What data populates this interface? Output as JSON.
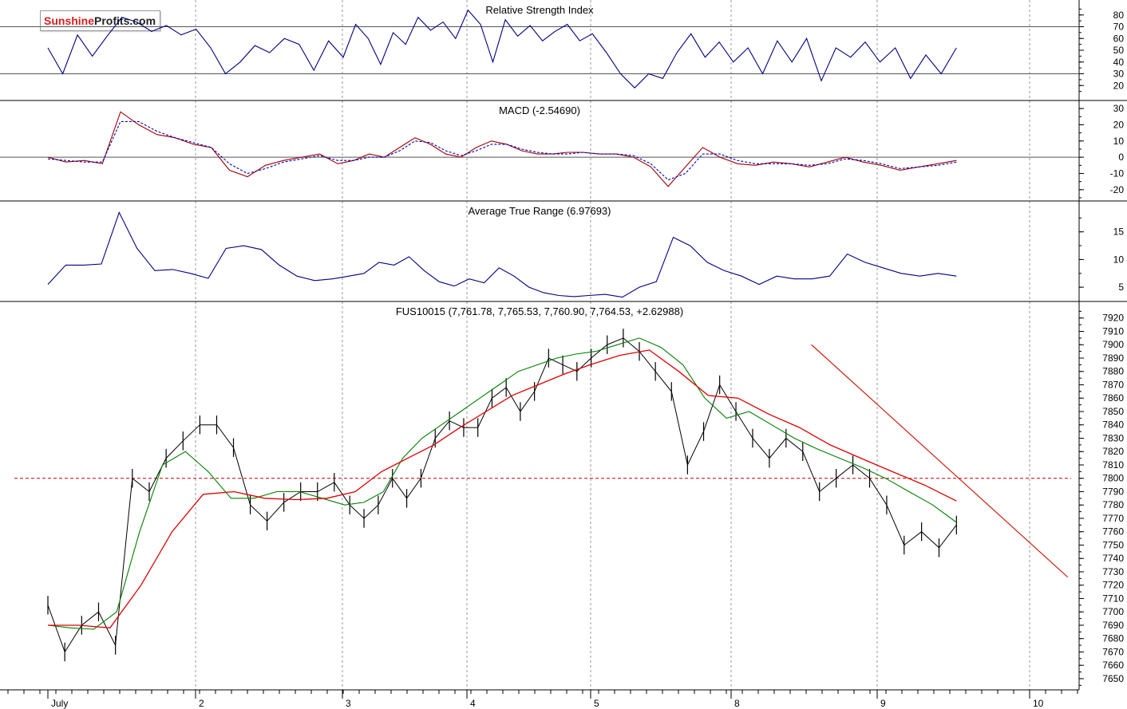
{
  "logo": {
    "brand_red": "Sunshine",
    "brand_black": "Profits.com"
  },
  "colors": {
    "price": "#000000",
    "ma_fast": "#008000",
    "ma_slow": "#e00000",
    "trend": "#d02010",
    "support": "#c00000",
    "indicator": "#000080",
    "grid": "#9a9a9a"
  },
  "x_axis": {
    "labels": [
      "July",
      "2",
      "3",
      "4",
      "5",
      "8",
      "9",
      "10"
    ],
    "session_index": [
      0,
      1,
      2,
      3,
      4,
      5,
      6,
      7
    ]
  },
  "chart_data": [
    {
      "id": "rsi",
      "type": "line",
      "title": "Relative Strength Index",
      "ylim": [
        10,
        90
      ],
      "ticks": [
        20,
        30,
        40,
        50,
        60,
        70,
        80
      ],
      "reference_lines": [
        30,
        70
      ],
      "x_session_range": [
        0,
        6.52
      ],
      "series": [
        {
          "values": [
            52,
            30,
            63,
            45,
            62,
            78,
            74,
            66,
            71,
            63,
            68,
            52,
            30,
            40,
            54,
            48,
            60,
            55,
            33,
            58,
            44,
            72,
            60,
            38,
            65,
            55,
            78,
            67,
            74,
            60,
            84,
            72,
            40,
            76,
            62,
            71,
            58,
            66,
            72,
            58,
            64,
            48,
            30,
            18,
            30,
            26,
            48,
            64,
            44,
            57,
            40,
            52,
            30,
            58,
            40,
            60,
            24,
            52,
            44,
            57,
            40,
            52,
            26,
            46,
            30,
            52
          ]
        }
      ]
    },
    {
      "id": "macd",
      "type": "line",
      "title": "MACD (-2.54690)",
      "ylim": [
        -25,
        33
      ],
      "ticks": [
        -20,
        -10,
        0,
        10,
        20,
        30
      ],
      "reference_lines": [
        0
      ],
      "x_session_range": [
        0,
        6.52
      ],
      "series": [
        {
          "values": [
            0,
            -3,
            -2,
            -4,
            28,
            20,
            14,
            12,
            8,
            6,
            -8,
            -12,
            -5,
            -2,
            0,
            2,
            -4,
            -2,
            2,
            0,
            6,
            12,
            8,
            2,
            0,
            6,
            10,
            8,
            4,
            2,
            2,
            3,
            3,
            2,
            2,
            0,
            -6,
            -18,
            -6,
            6,
            0,
            -4,
            -5,
            -3,
            -4,
            -6,
            -3,
            0,
            -3,
            -5,
            -8,
            -6,
            -4,
            -2
          ]
        },
        {
          "values": [
            -1,
            -2,
            -3,
            -3,
            22,
            22,
            16,
            12,
            9,
            6,
            -4,
            -10,
            -7,
            -3,
            -1,
            1,
            -2,
            -2,
            0,
            0,
            4,
            10,
            9,
            4,
            1,
            4,
            8,
            8,
            5,
            3,
            2,
            2,
            3,
            2,
            2,
            1,
            -4,
            -14,
            -10,
            2,
            2,
            -2,
            -4,
            -4,
            -4,
            -5,
            -4,
            -1,
            -2,
            -4,
            -7,
            -6,
            -5,
            -3
          ]
        }
      ]
    },
    {
      "id": "atr",
      "type": "line",
      "title": "Average True Range (6.97693)",
      "ylim": [
        3,
        20
      ],
      "ticks": [
        5,
        10,
        15
      ],
      "x_session_range": [
        0,
        6.52
      ],
      "series": [
        {
          "values": [
            5.5,
            9,
            9,
            9.2,
            18.5,
            12,
            8,
            8.2,
            7.5,
            6.6,
            12,
            12.5,
            11.8,
            9,
            7,
            6.2,
            6.5,
            7,
            7.5,
            9.5,
            9,
            10.5,
            8,
            6,
            5.2,
            6.5,
            5.8,
            8.5,
            7,
            5,
            4,
            3.5,
            3.3,
            3.5,
            3.7,
            3.2,
            5,
            6,
            14,
            12.5,
            9.5,
            8,
            7,
            5.5,
            7,
            6.5,
            6.5,
            7,
            11,
            9.5,
            8.5,
            7.5,
            7,
            7.5,
            7
          ]
        }
      ]
    },
    {
      "id": "price",
      "type": "line",
      "title": "FUS10015 (7,761.78, 7,765.53, 7,760.90, 7,764.53, +2.62988)",
      "ylim": [
        7644,
        7930
      ],
      "ticks": [
        7650,
        7660,
        7670,
        7680,
        7690,
        7700,
        7710,
        7720,
        7730,
        7740,
        7750,
        7760,
        7770,
        7780,
        7790,
        7800,
        7810,
        7820,
        7830,
        7840,
        7850,
        7860,
        7870,
        7880,
        7890,
        7900,
        7910,
        7920
      ],
      "support_level": 7800,
      "trendline": [
        {
          "session": 5.55,
          "value": 7900
        },
        {
          "session": 7.25,
          "value": 7726
        }
      ],
      "x_session_range": [
        0,
        6.52
      ],
      "series": [
        {
          "name": "price",
          "values": [
            7705,
            7670,
            7690,
            7700,
            7675,
            7800,
            7790,
            7815,
            7828,
            7840,
            7840,
            7823,
            7780,
            7768,
            7782,
            7790,
            7790,
            7797,
            7780,
            7770,
            7780,
            7800,
            7785,
            7800,
            7830,
            7843,
            7838,
            7838,
            7860,
            7868,
            7850,
            7865,
            7890,
            7885,
            7880,
            7890,
            7900,
            7905,
            7895,
            7880,
            7865,
            7810,
            7835,
            7870,
            7850,
            7830,
            7815,
            7830,
            7820,
            7790,
            7800,
            7810,
            7800,
            7780,
            7750,
            7760,
            7748,
            7765
          ]
        },
        {
          "name": "ma_fast",
          "values": [
            7690,
            7688,
            7687,
            7700,
            7760,
            7810,
            7820,
            7805,
            7785,
            7785,
            7790,
            7790,
            7785,
            7780,
            7782,
            7790,
            7815,
            7830,
            7840,
            7850,
            7860,
            7870,
            7880,
            7885,
            7890,
            7893,
            7895,
            7900,
            7905,
            7898,
            7885,
            7860,
            7845,
            7850,
            7840,
            7830,
            7822,
            7815,
            7808,
            7800,
            7790,
            7780,
            7767
          ]
        },
        {
          "name": "ma_slow",
          "values": [
            7690,
            7690,
            7688,
            7720,
            7760,
            7788,
            7790,
            7785,
            7784,
            7785,
            7790,
            7805,
            7815,
            7825,
            7838,
            7850,
            7862,
            7870,
            7878,
            7885,
            7892,
            7896,
            7880,
            7862,
            7860,
            7848,
            7838,
            7825,
            7815,
            7805,
            7795,
            7783
          ]
        }
      ]
    }
  ]
}
